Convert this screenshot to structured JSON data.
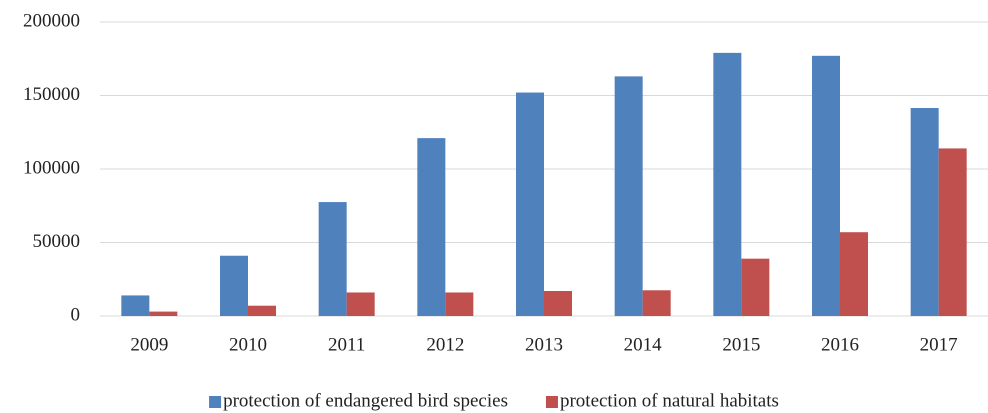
{
  "chart_data": {
    "type": "bar",
    "categories": [
      "2009",
      "2010",
      "2011",
      "2012",
      "2013",
      "2014",
      "2015",
      "2016",
      "2017"
    ],
    "series": [
      {
        "name": "protection of endangered bird species",
        "color": "#4f81bd",
        "values": [
          14000,
          41000,
          77500,
          121000,
          152000,
          163000,
          179000,
          177000,
          141500
        ]
      },
      {
        "name": "protection of natural habitats",
        "color": "#c0504d",
        "values": [
          3000,
          7000,
          16000,
          16000,
          17000,
          17500,
          39000,
          57000,
          114000
        ]
      }
    ],
    "ylim": [
      0,
      200000
    ],
    "yticks": [
      0,
      50000,
      100000,
      150000,
      200000
    ],
    "grid": true,
    "legend": "bottom"
  }
}
